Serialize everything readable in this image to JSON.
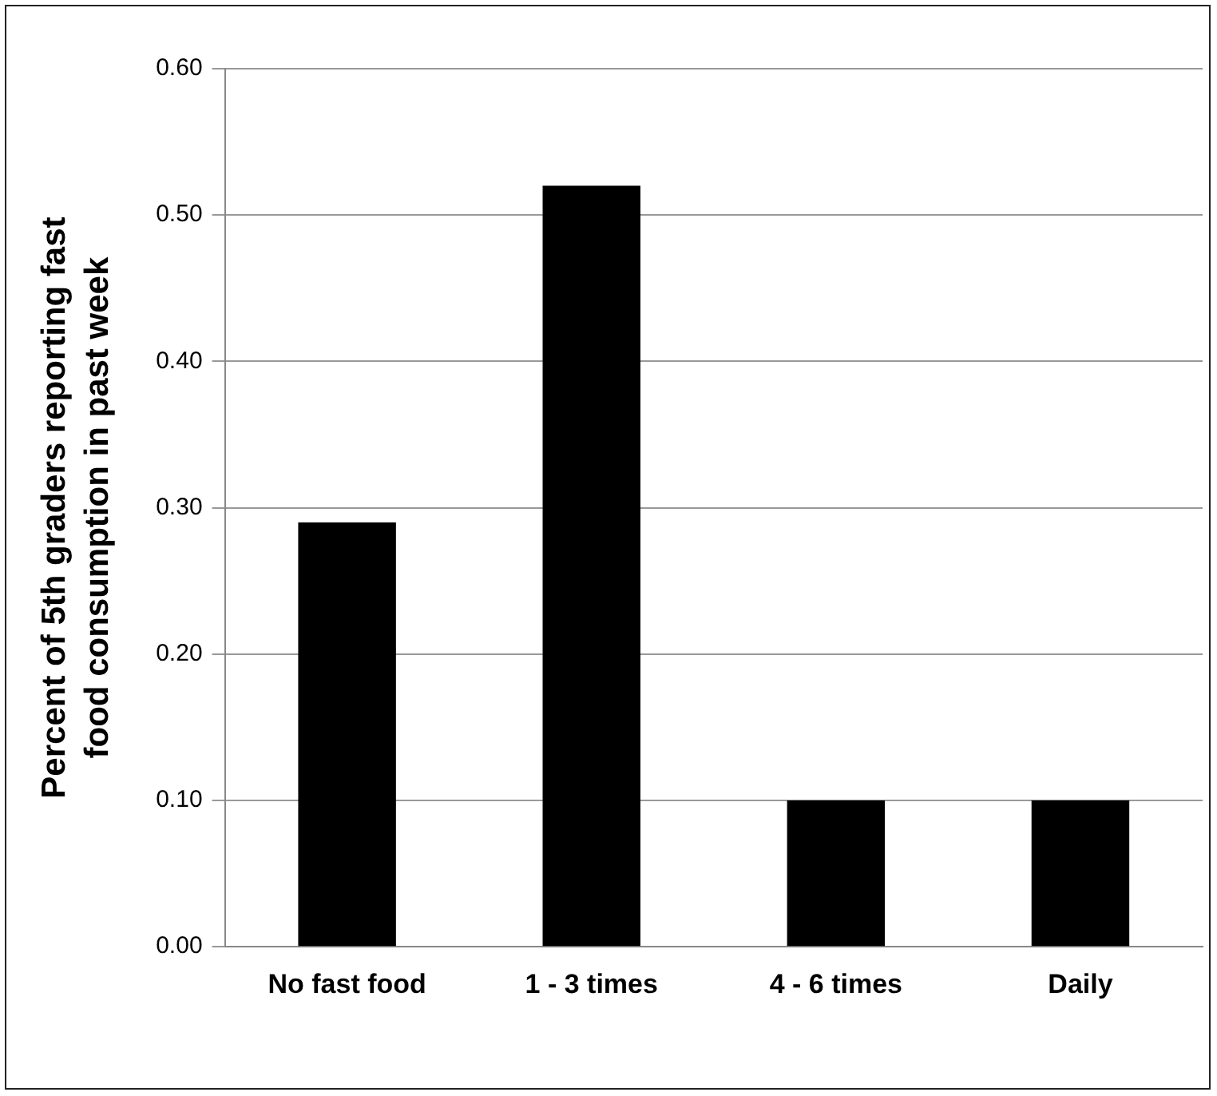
{
  "chart_data": {
    "type": "bar",
    "ylabel": "Percent of 5th graders reporting fast food consumption in past week",
    "categories": [
      "No fast food",
      "1 - 3 times",
      "4 - 6 times",
      "Daily"
    ],
    "values": [
      0.29,
      0.52,
      0.1,
      0.1
    ],
    "color": "#000000",
    "ylim": [
      0,
      0.6
    ],
    "yticks": [
      {
        "value": 0,
        "label": "0.00"
      },
      {
        "value": 0.1,
        "label": "0.10"
      },
      {
        "value": 0.2,
        "label": "0.20"
      },
      {
        "value": 0.3,
        "label": "0.30"
      },
      {
        "value": 0.4,
        "label": "0.40"
      },
      {
        "value": 0.5,
        "label": "0.50"
      },
      {
        "value": 0.6,
        "label": "0.60"
      }
    ],
    "grid": "y",
    "legend": false
  }
}
